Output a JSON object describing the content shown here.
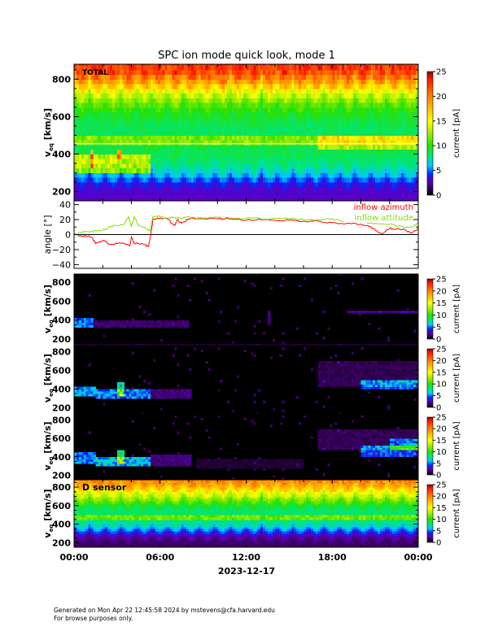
{
  "title": "SPC ion mode quick look, mode 1",
  "footer": {
    "line1": "Generated on Mon Apr 22 12:45:58 2024 by mstevens@cfa.harvard.edu",
    "line2": "For browse purposes only."
  },
  "chart_data": {
    "type": "heatmap",
    "title": "SPC ion mode quick look, mode 1",
    "xlabel": "2023-12-17",
    "x_range_hours": [
      0,
      24
    ],
    "x_ticks": [
      {
        "hour": 0,
        "label": "00:00"
      },
      {
        "hour": 6,
        "label": "06:00"
      },
      {
        "hour": 12,
        "label": "12:00"
      },
      {
        "hour": 18,
        "label": "18:00"
      },
      {
        "hour": 24,
        "label": "00:00"
      }
    ],
    "ylabel": {
      "main": "v",
      "sub": "eq",
      "unit": " [km/s]"
    },
    "colorbar": {
      "label": "current [pA]",
      "range": [
        0,
        25
      ],
      "ticks": [
        0,
        5,
        10,
        15,
        20,
        25
      ],
      "stops": [
        [
          0,
          "#000000"
        ],
        [
          1.5,
          "#3c0064"
        ],
        [
          3,
          "#5a00c8"
        ],
        [
          4.2,
          "#0028ff"
        ],
        [
          6,
          "#00c8ff"
        ],
        [
          8,
          "#00e678"
        ],
        [
          10,
          "#28e000"
        ],
        [
          13,
          "#b4f000"
        ],
        [
          15,
          "#ffff00"
        ],
        [
          18,
          "#ffb400"
        ],
        [
          21,
          "#ff6400"
        ],
        [
          23.5,
          "#ff1400"
        ],
        [
          25,
          "#8c0000"
        ]
      ]
    },
    "spectrograms": [
      {
        "label": "TOTAL",
        "ylim": [
          150,
          880
        ],
        "yticks": [
          200,
          400,
          600,
          800
        ],
        "marker_line_kms": 455,
        "profile_v": [
          150,
          200,
          250,
          300,
          350,
          400,
          450,
          500,
          550,
          600,
          650,
          700,
          750,
          800,
          850,
          900
        ],
        "profile_current": [
          3,
          3,
          3.5,
          6,
          8,
          8.5,
          9,
          8.5,
          8.5,
          9,
          10,
          12,
          15,
          19,
          22,
          23
        ],
        "oscillation": {
          "period_hours": 1.09,
          "amplitude_kms": 60
        },
        "features": [
          {
            "t": [
              0,
              24
            ],
            "v": [
              455,
              500
            ],
            "current": 3
          },
          {
            "t": [
              17,
              24
            ],
            "v": [
              420,
              500
            ],
            "current": 4
          },
          {
            "t": [
              0,
              5.3
            ],
            "v": [
              300,
              410
            ],
            "current": 5
          },
          {
            "t": [
              1.1,
              1.4
            ],
            "v": [
              330,
              420
            ],
            "current": 9
          },
          {
            "t": [
              3.0,
              3.4
            ],
            "v": [
              380,
              420
            ],
            "current": 8
          }
        ]
      },
      {
        "label": "",
        "ylim": [
          150,
          885
        ],
        "yticks": [
          200,
          400,
          600,
          800
        ],
        "profile_v": [
          150,
          900
        ],
        "profile_current": [
          0,
          0
        ],
        "features": [
          {
            "t": [
              0,
              1.4
            ],
            "v": [
              330,
              420
            ],
            "current": 5
          },
          {
            "t": [
              1.4,
              8
            ],
            "v": [
              320,
              390
            ],
            "current": 1.6
          },
          {
            "t": [
              13.5,
              13.7
            ],
            "v": [
              350,
              500
            ],
            "current": 2
          },
          {
            "t": [
              19,
              24
            ],
            "v": [
              470,
              510
            ],
            "current": 2
          }
        ]
      },
      {
        "label": "",
        "ylim": [
          150,
          885
        ],
        "yticks": [
          200,
          400,
          600,
          800
        ],
        "profile_v": [
          150,
          900
        ],
        "profile_current": [
          0,
          0
        ],
        "features": [
          {
            "t": [
              0,
              24
            ],
            "v": [
              870,
              900
            ],
            "current": 1.6
          },
          {
            "t": [
              0,
              1.5
            ],
            "v": [
              330,
              430
            ],
            "current": 5.5
          },
          {
            "t": [
              1.5,
              5.3
            ],
            "v": [
              310,
              400
            ],
            "current": 5
          },
          {
            "t": [
              3.0,
              3.5
            ],
            "v": [
              330,
              480
            ],
            "current": 7
          },
          {
            "t": [
              5.3,
              8.2
            ],
            "v": [
              300,
              410
            ],
            "current": 1.8
          },
          {
            "t": [
              17,
              24
            ],
            "v": [
              420,
              700
            ],
            "current": 1.2
          },
          {
            "t": [
              20,
              24
            ],
            "v": [
              410,
              510
            ],
            "current": 4.5
          }
        ]
      },
      {
        "label": "",
        "ylim": [
          150,
          885
        ],
        "yticks": [
          200,
          400,
          600,
          800
        ],
        "profile_v": [
          150,
          900
        ],
        "profile_current": [
          0,
          0
        ],
        "features": [
          {
            "t": [
              0,
              1.5
            ],
            "v": [
              330,
              440
            ],
            "current": 5
          },
          {
            "t": [
              1.5,
              5.3
            ],
            "v": [
              300,
              400
            ],
            "current": 6
          },
          {
            "t": [
              3.0,
              3.5
            ],
            "v": [
              330,
              480
            ],
            "current": 8
          },
          {
            "t": [
              5.3,
              8.2
            ],
            "v": [
              300,
              420
            ],
            "current": 1.8
          },
          {
            "t": [
              8.5,
              16
            ],
            "v": [
              280,
              370
            ],
            "current": 0.8
          },
          {
            "t": [
              17,
              24
            ],
            "v": [
              480,
              700
            ],
            "current": 1.3
          },
          {
            "t": [
              20,
              24
            ],
            "v": [
              410,
              520
            ],
            "current": 4.5
          },
          {
            "t": [
              22,
              24
            ],
            "v": [
              480,
              600
            ],
            "current": 4
          }
        ]
      },
      {
        "label": "D sensor",
        "ylim": [
          150,
          880
        ],
        "yticks": [
          200,
          400,
          600,
          800
        ],
        "profile_v": [
          150,
          200,
          250,
          300,
          350,
          400,
          450,
          500,
          550,
          600,
          650,
          700,
          750,
          800,
          850,
          900
        ],
        "profile_current": [
          1.5,
          1.5,
          2,
          3,
          5,
          7,
          8,
          8.5,
          8,
          9,
          10.5,
          12.5,
          14.5,
          17,
          19,
          20
        ],
        "oscillation": {
          "period_hours": 1.09,
          "amplitude_kms": 80
        },
        "features": [
          {
            "t": [
              0,
              24
            ],
            "v": [
              450,
              500
            ],
            "current": 3
          }
        ]
      }
    ],
    "angle": {
      "ylabel": "angle [°]",
      "ylim": [
        -45,
        45
      ],
      "yticks": [
        -40,
        -20,
        0,
        20,
        40
      ],
      "series": [
        {
          "name": "inflow azimuth",
          "color": "#ff0000",
          "x": [
            0,
            0.5,
            1,
            1.3,
            1.5,
            2,
            2.5,
            3,
            3.5,
            3.9,
            4,
            4.2,
            4.5,
            5,
            5.2,
            5.35,
            5.5,
            6,
            6.5,
            7,
            7.2,
            7.5,
            8,
            8.5,
            9,
            10,
            11,
            12,
            13,
            14,
            15,
            16,
            17,
            18,
            19,
            20,
            20.5,
            21,
            21.5,
            22,
            22.5,
            23,
            23.5,
            24
          ],
          "y": [
            0,
            -2,
            -2,
            -5,
            -12,
            -8,
            -13,
            -12,
            -12,
            -15,
            -3,
            -12,
            -12,
            -14,
            -16,
            0,
            20,
            22,
            21,
            12,
            20,
            15,
            21,
            21,
            21,
            21,
            21,
            19,
            20,
            19,
            19,
            18,
            18,
            16,
            15,
            14,
            12,
            6,
            1,
            8,
            8,
            7,
            2,
            8
          ]
        },
        {
          "name": "inflow attitude",
          "color": "#80e000",
          "x": [
            0,
            0.5,
            1,
            1.5,
            2,
            2.5,
            3,
            3.5,
            3.8,
            4,
            4.2,
            4.5,
            5,
            5.3,
            5.5,
            6,
            6.5,
            7,
            7.5,
            8,
            8.5,
            9,
            10,
            11,
            12,
            13,
            14,
            15,
            16,
            17,
            18,
            19,
            20,
            21,
            22,
            23,
            23.5,
            24
          ],
          "y": [
            0,
            3,
            4,
            5,
            6,
            10,
            12,
            14,
            24,
            10,
            24,
            12,
            8,
            5,
            24,
            24,
            22,
            23,
            22,
            24,
            22,
            22,
            23,
            22,
            22,
            21,
            22,
            21,
            20,
            20,
            21,
            18,
            17,
            15,
            14,
            10,
            10,
            15
          ]
        }
      ],
      "legend_position": "top-right"
    }
  }
}
